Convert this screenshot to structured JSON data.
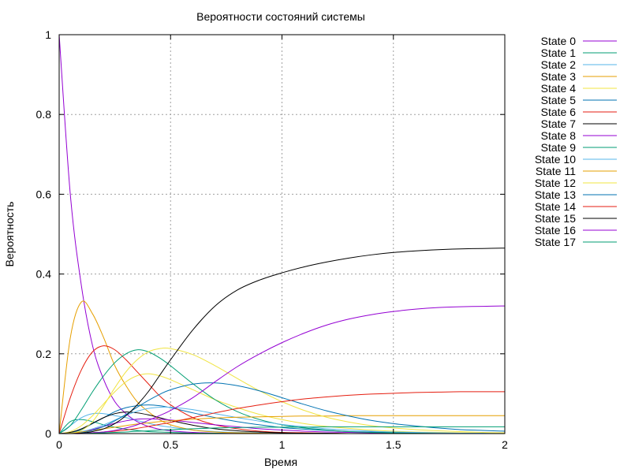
{
  "chart_data": {
    "type": "line",
    "title": "Вероятности состояний системы",
    "xlabel": "Время",
    "ylabel": "Вероятность",
    "xlim": [
      0,
      2
    ],
    "ylim": [
      0,
      1
    ],
    "grid": true,
    "legend_position": "top-right outside",
    "x_ticks": [
      0,
      0.5,
      1,
      1.5,
      2
    ],
    "x_tick_labels": [
      "0",
      "0.5",
      "1",
      "1.5",
      "2"
    ],
    "y_ticks": [
      0,
      0.2,
      0.4,
      0.6,
      0.8,
      1
    ],
    "y_tick_labels": [
      "0",
      "0.2",
      "0.4",
      "0.6",
      "0.8",
      "1"
    ],
    "x": [
      0,
      0.05,
      0.1,
      0.15,
      0.2,
      0.25,
      0.3,
      0.35,
      0.4,
      0.45,
      0.5,
      0.6,
      0.7,
      0.8,
      0.9,
      1.0,
      1.1,
      1.2,
      1.3,
      1.4,
      1.5,
      1.6,
      1.7,
      1.8,
      1.9,
      2.0
    ],
    "series": [
      {
        "name": "State 0",
        "color": "#9400d3",
        "values": [
          1.0,
          0.6,
          0.37,
          0.22,
          0.135,
          0.08,
          0.05,
          0.03,
          0.018,
          0.011,
          0.007,
          0.003,
          0.001,
          0.0005,
          0.0002,
          0,
          0,
          0,
          0,
          0,
          0,
          0,
          0,
          0,
          0,
          0
        ]
      },
      {
        "name": "State 1",
        "color": "#009e73",
        "values": [
          0,
          0.03,
          0.035,
          0.03,
          0.022,
          0.016,
          0.011,
          0.008,
          0.005,
          0.004,
          0.003,
          0.001,
          0.001,
          0,
          0,
          0,
          0,
          0,
          0,
          0,
          0,
          0,
          0,
          0,
          0,
          0
        ]
      },
      {
        "name": "State 2",
        "color": "#56b4e9",
        "values": [
          0,
          0.02,
          0.04,
          0.05,
          0.05,
          0.045,
          0.04,
          0.033,
          0.026,
          0.02,
          0.016,
          0.009,
          0.005,
          0.003,
          0.002,
          0.001,
          0.001,
          0,
          0,
          0,
          0,
          0,
          0,
          0,
          0,
          0
        ]
      },
      {
        "name": "State 3",
        "color": "#e69f00",
        "values": [
          0,
          0.24,
          0.33,
          0.3,
          0.24,
          0.17,
          0.12,
          0.08,
          0.055,
          0.035,
          0.022,
          0.009,
          0.004,
          0.002,
          0.001,
          0,
          0,
          0,
          0,
          0,
          0,
          0,
          0,
          0,
          0,
          0
        ]
      },
      {
        "name": "State 4",
        "color": "#f0e442",
        "values": [
          0,
          0.005,
          0.02,
          0.045,
          0.075,
          0.105,
          0.13,
          0.145,
          0.15,
          0.145,
          0.135,
          0.11,
          0.085,
          0.065,
          0.048,
          0.035,
          0.025,
          0.018,
          0.013,
          0.009,
          0.006,
          0.004,
          0.003,
          0.002,
          0.001,
          0.001
        ]
      },
      {
        "name": "State 5",
        "color": "#0072b2",
        "values": [
          0,
          0.002,
          0.01,
          0.025,
          0.04,
          0.055,
          0.065,
          0.07,
          0.072,
          0.07,
          0.065,
          0.052,
          0.04,
          0.03,
          0.022,
          0.015,
          0.011,
          0.008,
          0.005,
          0.004,
          0.003,
          0.002,
          0.001,
          0.001,
          0,
          0
        ]
      },
      {
        "name": "State 6",
        "color": "#e51e10",
        "values": [
          0,
          0.09,
          0.16,
          0.205,
          0.22,
          0.21,
          0.185,
          0.155,
          0.125,
          0.095,
          0.072,
          0.04,
          0.022,
          0.012,
          0.006,
          0.003,
          0.002,
          0.001,
          0,
          0,
          0,
          0,
          0,
          0,
          0,
          0
        ]
      },
      {
        "name": "State 7",
        "color": "#000000",
        "values": [
          0,
          0.003,
          0.012,
          0.026,
          0.04,
          0.05,
          0.054,
          0.052,
          0.047,
          0.04,
          0.033,
          0.021,
          0.012,
          0.007,
          0.004,
          0.002,
          0.001,
          0.001,
          0,
          0,
          0,
          0,
          0,
          0,
          0,
          0
        ]
      },
      {
        "name": "State 8",
        "color": "#9400d3",
        "values": [
          0,
          0.001,
          0.004,
          0.01,
          0.018,
          0.026,
          0.032,
          0.036,
          0.037,
          0.036,
          0.034,
          0.028,
          0.022,
          0.017,
          0.012,
          0.009,
          0.006,
          0.004,
          0.003,
          0.002,
          0.001,
          0.001,
          0,
          0,
          0,
          0
        ]
      },
      {
        "name": "State 9",
        "color": "#009e73",
        "values": [
          0,
          0.02,
          0.06,
          0.105,
          0.145,
          0.178,
          0.2,
          0.21,
          0.205,
          0.19,
          0.17,
          0.125,
          0.085,
          0.055,
          0.035,
          0.022,
          0.014,
          0.009,
          0.005,
          0.003,
          0.002,
          0.001,
          0.001,
          0,
          0,
          0
        ]
      },
      {
        "name": "State 10",
        "color": "#56b4e9",
        "values": [
          0,
          0.001,
          0.005,
          0.012,
          0.022,
          0.034,
          0.046,
          0.056,
          0.063,
          0.066,
          0.066,
          0.06,
          0.05,
          0.04,
          0.031,
          0.023,
          0.017,
          0.012,
          0.009,
          0.006,
          0.004,
          0.003,
          0.002,
          0.001,
          0.001,
          0.001
        ]
      },
      {
        "name": "State 11",
        "color": "#e69f00",
        "values": [
          0,
          0.001,
          0.004,
          0.008,
          0.012,
          0.016,
          0.02,
          0.024,
          0.027,
          0.03,
          0.032,
          0.036,
          0.039,
          0.041,
          0.042,
          0.043,
          0.044,
          0.044,
          0.045,
          0.045,
          0.045,
          0.045,
          0.045,
          0.045,
          0.045,
          0.045
        ]
      },
      {
        "name": "State 12",
        "color": "#f0e442",
        "values": [
          0,
          0.001,
          0.008,
          0.03,
          0.07,
          0.115,
          0.155,
          0.185,
          0.205,
          0.213,
          0.213,
          0.198,
          0.17,
          0.138,
          0.107,
          0.08,
          0.058,
          0.041,
          0.029,
          0.02,
          0.014,
          0.01,
          0.007,
          0.005,
          0.003,
          0.002
        ]
      },
      {
        "name": "State 13",
        "color": "#0072b2",
        "values": [
          0,
          0,
          0.002,
          0.008,
          0.018,
          0.032,
          0.048,
          0.066,
          0.083,
          0.098,
          0.11,
          0.124,
          0.127,
          0.12,
          0.107,
          0.09,
          0.073,
          0.057,
          0.044,
          0.033,
          0.025,
          0.019,
          0.014,
          0.01,
          0.008,
          0.006
        ]
      },
      {
        "name": "State 14",
        "color": "#e51e10",
        "values": [
          0,
          0,
          0.001,
          0.002,
          0.004,
          0.006,
          0.009,
          0.013,
          0.018,
          0.023,
          0.028,
          0.04,
          0.052,
          0.063,
          0.072,
          0.08,
          0.087,
          0.092,
          0.096,
          0.099,
          0.101,
          0.103,
          0.104,
          0.105,
          0.105,
          0.105
        ]
      },
      {
        "name": "State 15",
        "color": "#000000",
        "values": [
          0,
          0,
          0.001,
          0.005,
          0.012,
          0.025,
          0.045,
          0.072,
          0.105,
          0.145,
          0.185,
          0.26,
          0.32,
          0.36,
          0.385,
          0.403,
          0.418,
          0.43,
          0.44,
          0.448,
          0.454,
          0.458,
          0.461,
          0.463,
          0.464,
          0.465
        ]
      },
      {
        "name": "State 16",
        "color": "#9400d3",
        "values": [
          0,
          0,
          0,
          0.002,
          0.004,
          0.008,
          0.014,
          0.022,
          0.033,
          0.045,
          0.058,
          0.09,
          0.13,
          0.168,
          0.2,
          0.228,
          0.252,
          0.272,
          0.287,
          0.298,
          0.306,
          0.312,
          0.316,
          0.318,
          0.319,
          0.32
        ]
      },
      {
        "name": "State 17",
        "color": "#009e73",
        "values": [
          0,
          0,
          0,
          0.001,
          0.002,
          0.003,
          0.004,
          0.006,
          0.007,
          0.009,
          0.01,
          0.012,
          0.014,
          0.015,
          0.016,
          0.016,
          0.016,
          0.017,
          0.017,
          0.017,
          0.017,
          0.017,
          0.017,
          0.017,
          0.017,
          0.017
        ]
      }
    ]
  }
}
